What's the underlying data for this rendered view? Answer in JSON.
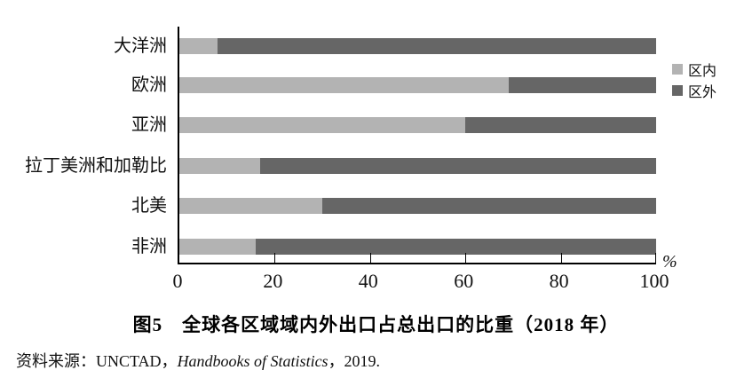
{
  "chart_data": {
    "type": "bar",
    "orientation": "horizontal",
    "stacked": true,
    "title": "图5　全球各区域域内外出口占总出口的比重（2018 年）",
    "categories": [
      "大洋洲",
      "欧洲",
      "亚洲",
      "拉丁美洲和加勒比",
      "北美",
      "非洲"
    ],
    "series": [
      {
        "name": "区内",
        "color": "#b3b3b3",
        "values": [
          8,
          69,
          60,
          17,
          30,
          16
        ]
      },
      {
        "name": "区外",
        "color": "#666666",
        "values": [
          92,
          31,
          40,
          83,
          70,
          84
        ]
      }
    ],
    "x_axis": {
      "range": [
        0,
        100
      ],
      "ticks": [
        0,
        20,
        40,
        60,
        80,
        100
      ],
      "unit_label": "%"
    },
    "legend_position": "right",
    "grid": false
  },
  "source": {
    "prefix": "资料来源：UNCTAD，",
    "work": "Handbooks of Statistics",
    "suffix": "，2019."
  }
}
